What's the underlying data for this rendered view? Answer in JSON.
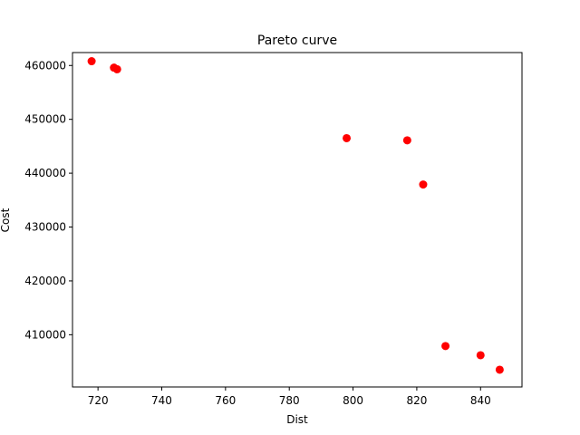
{
  "chart_data": {
    "type": "scatter",
    "title": "Pareto curve",
    "xlabel": "Dist",
    "ylabel": "Cost",
    "xlim": [
      712,
      853
    ],
    "ylim": [
      400300,
      462400
    ],
    "xticks": [
      720,
      740,
      760,
      780,
      800,
      820,
      840
    ],
    "yticks": [
      410000,
      420000,
      430000,
      440000,
      450000,
      460000
    ],
    "grid": false,
    "marker_color": "#ff0000",
    "points": [
      {
        "x": 718,
        "y": 460800
      },
      {
        "x": 725,
        "y": 459600
      },
      {
        "x": 726,
        "y": 459300
      },
      {
        "x": 798,
        "y": 446500
      },
      {
        "x": 817,
        "y": 446100
      },
      {
        "x": 822,
        "y": 437900
      },
      {
        "x": 829,
        "y": 407900
      },
      {
        "x": 840,
        "y": 406200
      },
      {
        "x": 846,
        "y": 403500
      }
    ]
  }
}
